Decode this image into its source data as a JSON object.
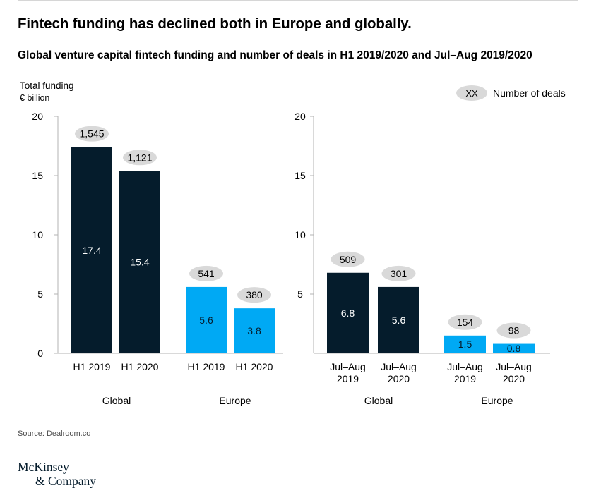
{
  "header": {
    "headline": "Fintech funding has declined both in Europe and globally.",
    "subtitle": "Global venture capital fintech funding and number of deals in H1 2019/2020 and Jul–Aug 2019/2020",
    "y_label": "Total funding",
    "y_unit": "€ billion"
  },
  "legend": {
    "badge": "XX",
    "label": "Number of deals"
  },
  "colors": {
    "global": "#051c2c",
    "europe": "#00a9f4",
    "badge": "#d9d9d9",
    "axis": "#b3b3b3"
  },
  "chart_data": [
    {
      "type": "bar",
      "title": "H1 2019/2020",
      "ylim": [
        0,
        20
      ],
      "yticks": [
        0,
        5,
        10,
        15,
        20
      ],
      "groups": [
        "Global",
        "Europe"
      ],
      "bars": [
        {
          "group": "Global",
          "category": "H1 2019",
          "value": 17.4,
          "label": "17.4",
          "deals": "1,545"
        },
        {
          "group": "Global",
          "category": "H1 2020",
          "value": 15.4,
          "label": "15.4",
          "deals": "1,121"
        },
        {
          "group": "Europe",
          "category": "H1 2019",
          "value": 5.6,
          "label": "5.6",
          "deals": "541"
        },
        {
          "group": "Europe",
          "category": "H1 2020",
          "value": 3.8,
          "label": "3.8",
          "deals": "380"
        }
      ]
    },
    {
      "type": "bar",
      "title": "Jul–Aug 2019/2020",
      "ylim": [
        0,
        20
      ],
      "yticks": [
        5,
        10,
        15,
        20
      ],
      "groups": [
        "Global",
        "Europe"
      ],
      "bars": [
        {
          "group": "Global",
          "category": "Jul–Aug 2019",
          "value": 6.8,
          "label": "6.8",
          "deals": "509"
        },
        {
          "group": "Global",
          "category": "Jul–Aug 2020",
          "value": 5.6,
          "label": "5.6",
          "deals": "301"
        },
        {
          "group": "Europe",
          "category": "Jul–Aug 2019",
          "value": 1.5,
          "label": "1.5",
          "deals": "154"
        },
        {
          "group": "Europe",
          "category": "Jul–Aug 2020",
          "value": 0.8,
          "label": "0.8",
          "deals": "98"
        }
      ]
    }
  ],
  "footer": {
    "source": "Source: Dealroom.co",
    "logo_line1": "McKinsey",
    "logo_line2": "& Company"
  }
}
